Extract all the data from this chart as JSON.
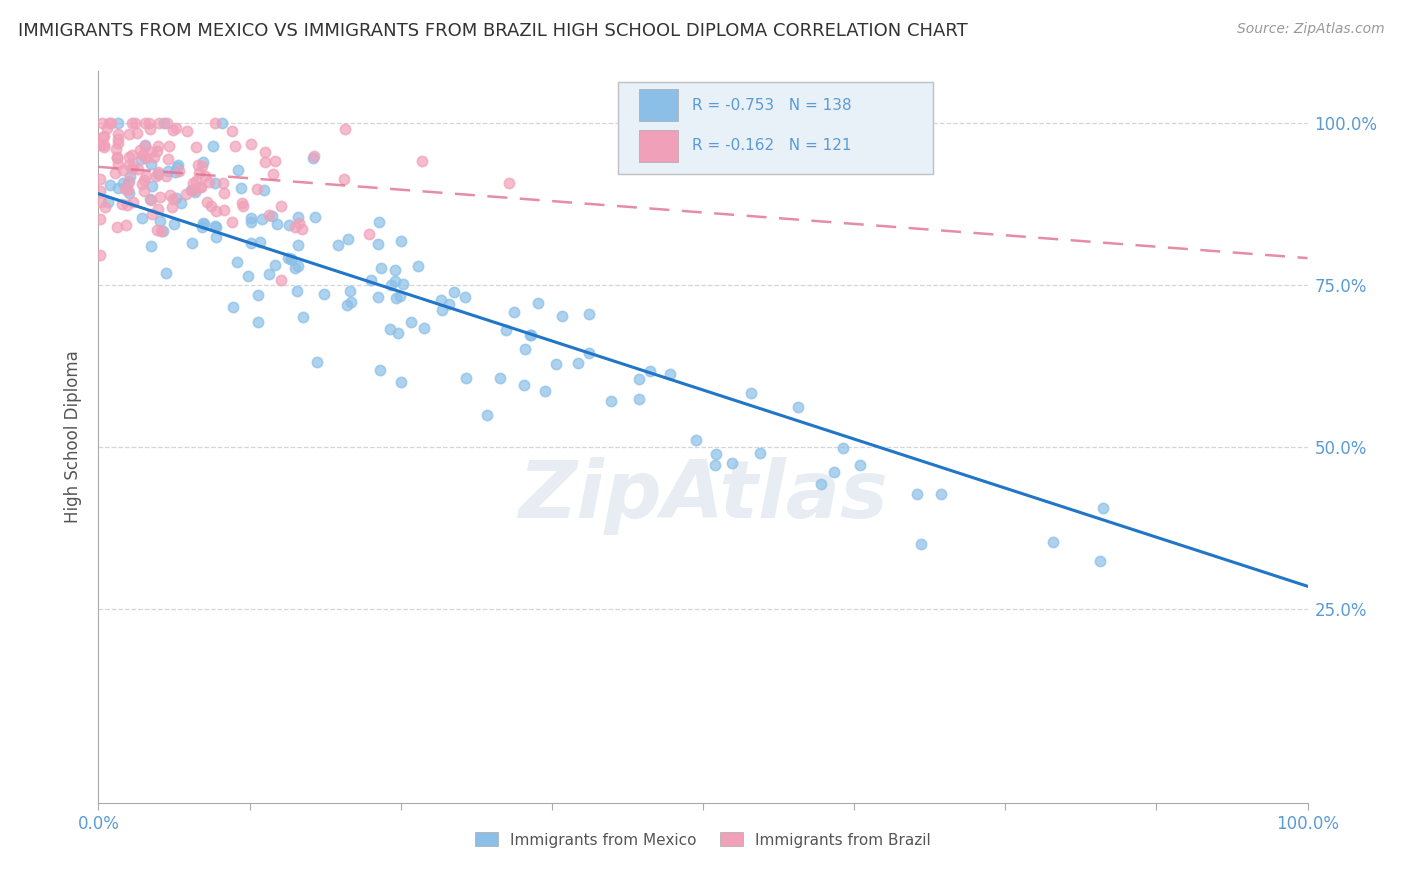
{
  "title": "IMMIGRANTS FROM MEXICO VS IMMIGRANTS FROM BRAZIL HIGH SCHOOL DIPLOMA CORRELATION CHART",
  "source": "Source: ZipAtlas.com",
  "ylabel": "High School Diploma",
  "legend_mexico": "Immigrants from Mexico",
  "legend_brazil": "Immigrants from Brazil",
  "r_mexico": -0.753,
  "n_mexico": 138,
  "r_brazil": -0.162,
  "n_brazil": 121,
  "color_mexico": "#8bbfe8",
  "color_mexico_line": "#2176c7",
  "color_brazil": "#f0a0b8",
  "color_brazil_line": "#e07090",
  "ytick_labels": [
    "100.0%",
    "75.0%",
    "50.0%",
    "25.0%"
  ],
  "ytick_values": [
    1.0,
    0.75,
    0.5,
    0.25
  ],
  "watermark": "ZipAtlas",
  "background_color": "#ffffff",
  "tick_color": "#5b9bd5",
  "legend_box_color": "#e8f0f8",
  "legend_border_color": "#c0c0c0"
}
